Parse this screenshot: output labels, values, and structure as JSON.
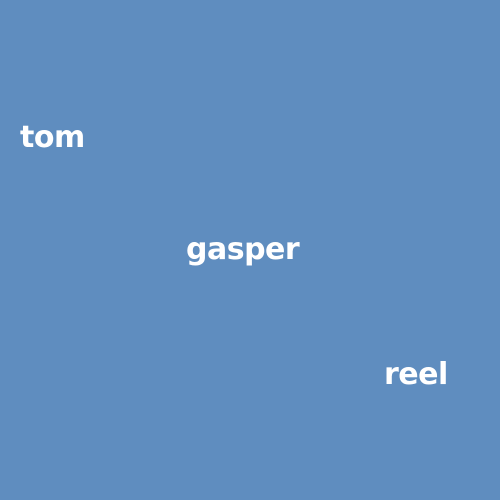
{
  "background_color": "#5f8dbf",
  "text_color": "#ffffff",
  "words": [
    {
      "text": "tom"
    },
    {
      "text": "gasper"
    },
    {
      "text": "reel"
    }
  ]
}
